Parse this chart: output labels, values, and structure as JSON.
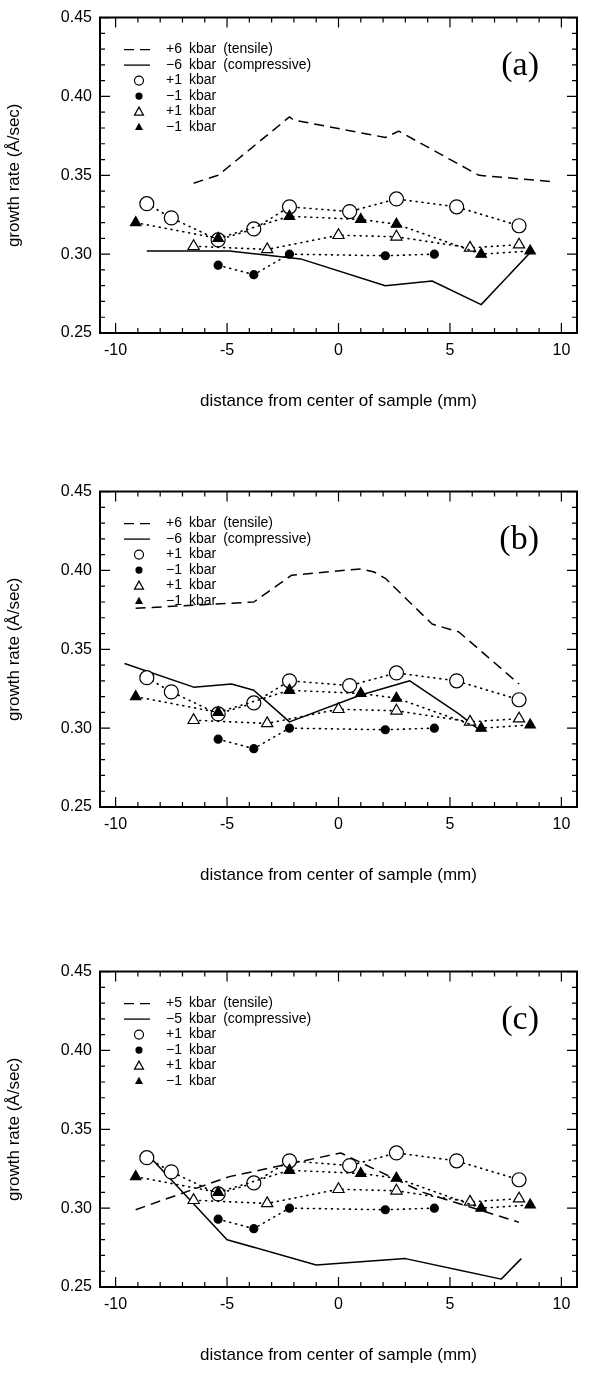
{
  "chart_data": [
    {
      "type": "line",
      "title": "(a)",
      "xlabel": "distance from center of sample (mm)",
      "ylabel": "growth rate (Å/sec)",
      "legend": "top left",
      "xlim": [
        -10.7,
        10.7
      ],
      "ylim": [
        0.25,
        0.45
      ],
      "xticks": [
        -10,
        {
          "value": -9,
          "label": null
        },
        {
          "value": -8,
          "label": null
        },
        {
          "value": -7,
          "label": null
        },
        {
          "value": -6,
          "label": null
        },
        -5,
        {
          "value": -4,
          "label": null
        },
        {
          "value": -3,
          "label": null
        },
        {
          "value": -2,
          "label": null
        },
        {
          "value": -1,
          "label": null
        },
        0,
        {
          "value": 1,
          "label": null
        },
        {
          "value": 2,
          "label": null
        },
        {
          "value": 3,
          "label": null
        },
        {
          "value": 4,
          "label": null
        },
        5,
        {
          "value": 6,
          "label": null
        },
        {
          "value": 7,
          "label": null
        },
        {
          "value": 8,
          "label": null
        },
        {
          "value": 9,
          "label": null
        },
        10
      ],
      "yticks": [
        0.25,
        {
          "value": 0.26,
          "label": null
        },
        {
          "value": 0.27,
          "label": null
        },
        {
          "value": 0.28,
          "label": null
        },
        {
          "value": 0.29,
          "label": null
        },
        {
          "value": 0.3,
          "label": "0.30"
        },
        {
          "value": 0.31,
          "label": null
        },
        {
          "value": 0.32,
          "label": null
        },
        {
          "value": 0.33,
          "label": null
        },
        {
          "value": 0.34,
          "label": null
        },
        0.35,
        {
          "value": 0.36,
          "label": null
        },
        {
          "value": 0.37,
          "label": null
        },
        {
          "value": 0.38,
          "label": null
        },
        {
          "value": 0.39,
          "label": null
        },
        {
          "value": 0.4,
          "label": "0.40"
        },
        {
          "value": 0.41,
          "label": null
        },
        {
          "value": 0.42,
          "label": null
        },
        {
          "value": 0.43,
          "label": null
        },
        {
          "value": 0.44,
          "label": null
        },
        0.45
      ],
      "series": [
        {
          "name": "+6  kbar  (tensile)",
          "color": "#000000",
          "line_style": "dashed",
          "marker": "none",
          "x": [
            -6.5,
            -5.4,
            -2.2,
            -2.0,
            2.1,
            2.7,
            6.3,
            9.6
          ],
          "values": [
            0.345,
            0.35,
            0.387,
            0.385,
            0.374,
            0.378,
            0.35,
            0.346
          ]
        },
        {
          "name": "−6  kbar  (compressive)",
          "color": "#000000",
          "line_style": "solid",
          "marker": "none",
          "x": [
            -8.6,
            -4.9,
            -1.7,
            2.1,
            4.2,
            6.4,
            8.6
          ],
          "values": [
            0.302,
            0.302,
            0.297,
            0.28,
            0.283,
            0.268,
            0.301
          ]
        },
        {
          "name": "+1  kbar",
          "color": "#ffffff",
          "line_style": "dotted",
          "marker": "circle",
          "x": [
            -8.6,
            -7.5,
            -5.4,
            -3.8,
            -2.2,
            0.5,
            2.6,
            5.3,
            8.1
          ],
          "values": [
            0.332,
            0.323,
            0.309,
            0.316,
            0.33,
            0.327,
            0.335,
            0.33,
            0.318
          ]
        },
        {
          "name": "−1  kbar",
          "color": "#000000",
          "line_style": "dotted",
          "marker": "circle",
          "x": [
            -5.4,
            -3.8,
            -2.2,
            2.1,
            4.3
          ],
          "values": [
            0.293,
            0.287,
            0.3,
            0.299,
            0.3
          ]
        },
        {
          "name": "+1  kbar",
          "color": "#ffffff",
          "line_style": "dotted",
          "marker": "triangle",
          "x": [
            -6.5,
            -3.2,
            0.0,
            2.6,
            5.9,
            8.1
          ],
          "values": [
            0.305,
            0.303,
            0.312,
            0.311,
            0.304,
            0.306
          ]
        },
        {
          "name": "−1  kbar",
          "color": "#000000",
          "line_style": "dotted",
          "marker": "triangle",
          "x": [
            -9.1,
            -5.4,
            -2.2,
            1.0,
            2.6,
            6.4,
            8.6
          ],
          "values": [
            0.32,
            0.31,
            0.324,
            0.322,
            0.319,
            0.3,
            0.302
          ]
        }
      ]
    },
    {
      "type": "line",
      "title": "(b)",
      "xlabel": "distance from center of sample (mm)",
      "ylabel": "growth rate (Å/sec)",
      "legend": "top left",
      "xlim": [
        -10.7,
        10.7
      ],
      "ylim": [
        0.25,
        0.45
      ],
      "xticks": [
        -10,
        {
          "value": -9,
          "label": null
        },
        {
          "value": -8,
          "label": null
        },
        {
          "value": -7,
          "label": null
        },
        {
          "value": -6,
          "label": null
        },
        -5,
        {
          "value": -4,
          "label": null
        },
        {
          "value": -3,
          "label": null
        },
        {
          "value": -2,
          "label": null
        },
        {
          "value": -1,
          "label": null
        },
        0,
        {
          "value": 1,
          "label": null
        },
        {
          "value": 2,
          "label": null
        },
        {
          "value": 3,
          "label": null
        },
        {
          "value": 4,
          "label": null
        },
        5,
        {
          "value": 6,
          "label": null
        },
        {
          "value": 7,
          "label": null
        },
        {
          "value": 8,
          "label": null
        },
        {
          "value": 9,
          "label": null
        },
        10
      ],
      "yticks": [
        0.25,
        {
          "value": 0.26,
          "label": null
        },
        {
          "value": 0.27,
          "label": null
        },
        {
          "value": 0.28,
          "label": null
        },
        {
          "value": 0.29,
          "label": null
        },
        {
          "value": 0.3,
          "label": "0.30"
        },
        {
          "value": 0.31,
          "label": null
        },
        {
          "value": 0.32,
          "label": null
        },
        {
          "value": 0.33,
          "label": null
        },
        {
          "value": 0.34,
          "label": null
        },
        0.35,
        {
          "value": 0.36,
          "label": null
        },
        {
          "value": 0.37,
          "label": null
        },
        {
          "value": 0.38,
          "label": null
        },
        {
          "value": 0.39,
          "label": null
        },
        {
          "value": 0.4,
          "label": "0.40"
        },
        {
          "value": 0.41,
          "label": null
        },
        {
          "value": 0.42,
          "label": null
        },
        {
          "value": 0.43,
          "label": null
        },
        {
          "value": 0.44,
          "label": null
        },
        0.45
      ],
      "series": [
        {
          "name": "+6  kbar  (tensile)",
          "color": "#000000",
          "line_style": "dashed",
          "marker": "none",
          "x": [
            -9.1,
            -3.8,
            -2.1,
            1.0,
            1.6,
            2.1,
            4.2,
            5.4,
            8.1
          ],
          "values": [
            0.376,
            0.38,
            0.397,
            0.401,
            0.399,
            0.395,
            0.366,
            0.361,
            0.328
          ]
        },
        {
          "name": "−6  kbar  (compressive)",
          "color": "#000000",
          "line_style": "solid",
          "marker": "none",
          "x": [
            -9.6,
            -6.5,
            -4.8,
            -3.8,
            -2.2,
            1.0,
            3.2,
            5.4,
            6.4
          ],
          "values": [
            0.341,
            0.326,
            0.328,
            0.324,
            0.304,
            0.321,
            0.33,
            0.309,
            0.298
          ]
        },
        {
          "name": "+1  kbar",
          "color": "#ffffff",
          "line_style": "dotted",
          "marker": "circle",
          "x": [
            -8.6,
            -7.5,
            -5.4,
            -3.8,
            -2.2,
            0.5,
            2.6,
            5.3,
            8.1
          ],
          "values": [
            0.332,
            0.323,
            0.309,
            0.316,
            0.33,
            0.327,
            0.335,
            0.33,
            0.318
          ]
        },
        {
          "name": "−1  kbar",
          "color": "#000000",
          "line_style": "dotted",
          "marker": "circle",
          "x": [
            -5.4,
            -3.8,
            -2.2,
            2.1,
            4.3
          ],
          "values": [
            0.293,
            0.287,
            0.3,
            0.299,
            0.3
          ]
        },
        {
          "name": "+1  kbar",
          "color": "#ffffff",
          "line_style": "dotted",
          "marker": "triangle",
          "x": [
            -6.5,
            -3.2,
            0.0,
            2.6,
            5.9,
            8.1
          ],
          "values": [
            0.305,
            0.303,
            0.312,
            0.311,
            0.304,
            0.306
          ]
        },
        {
          "name": "−1  kbar",
          "color": "#000000",
          "line_style": "dotted",
          "marker": "triangle",
          "x": [
            -9.1,
            -5.4,
            -2.2,
            1.0,
            2.6,
            6.4,
            8.6
          ],
          "values": [
            0.32,
            0.31,
            0.324,
            0.322,
            0.319,
            0.3,
            0.302
          ]
        }
      ]
    },
    {
      "type": "line",
      "title": "(c)",
      "xlabel": "distance from center of sample (mm)",
      "ylabel": "growth rate (Å/sec)",
      "legend": "top left",
      "xlim": [
        -10.7,
        10.7
      ],
      "ylim": [
        0.25,
        0.45
      ],
      "xticks": [
        -10,
        {
          "value": -9,
          "label": null
        },
        {
          "value": -8,
          "label": null
        },
        {
          "value": -7,
          "label": null
        },
        {
          "value": -6,
          "label": null
        },
        -5,
        {
          "value": -4,
          "label": null
        },
        {
          "value": -3,
          "label": null
        },
        {
          "value": -2,
          "label": null
        },
        {
          "value": -1,
          "label": null
        },
        0,
        {
          "value": 1,
          "label": null
        },
        {
          "value": 2,
          "label": null
        },
        {
          "value": 3,
          "label": null
        },
        {
          "value": 4,
          "label": null
        },
        5,
        {
          "value": 6,
          "label": null
        },
        {
          "value": 7,
          "label": null
        },
        {
          "value": 8,
          "label": null
        },
        {
          "value": 9,
          "label": null
        },
        10
      ],
      "yticks": [
        0.25,
        {
          "value": 0.26,
          "label": null
        },
        {
          "value": 0.27,
          "label": null
        },
        {
          "value": 0.28,
          "label": null
        },
        {
          "value": 0.29,
          "label": null
        },
        {
          "value": 0.3,
          "label": "0.30"
        },
        {
          "value": 0.31,
          "label": null
        },
        {
          "value": 0.32,
          "label": null
        },
        {
          "value": 0.33,
          "label": null
        },
        {
          "value": 0.34,
          "label": null
        },
        0.35,
        {
          "value": 0.36,
          "label": null
        },
        {
          "value": 0.37,
          "label": null
        },
        {
          "value": 0.38,
          "label": null
        },
        {
          "value": 0.39,
          "label": null
        },
        {
          "value": 0.4,
          "label": "0.40"
        },
        {
          "value": 0.41,
          "label": null
        },
        {
          "value": 0.42,
          "label": null
        },
        {
          "value": 0.43,
          "label": null
        },
        {
          "value": 0.44,
          "label": null
        },
        0.45
      ],
      "series": [
        {
          "name": "+5  kbar  (tensile)",
          "color": "#000000",
          "line_style": "dashed",
          "marker": "none",
          "x": [
            -9.1,
            -4.9,
            0.1,
            3.8,
            8.1
          ],
          "values": [
            0.299,
            0.32,
            0.335,
            0.31,
            0.291
          ]
        },
        {
          "name": "−5  kbar  (compressive)",
          "color": "#000000",
          "line_style": "solid",
          "marker": "none",
          "x": [
            -8.5,
            -5.0,
            -1.0,
            3.0,
            7.3,
            8.2
          ],
          "values": [
            0.333,
            0.28,
            0.264,
            0.268,
            0.255,
            0.268
          ]
        },
        {
          "name": "+1  kbar",
          "color": "#ffffff",
          "line_style": "dotted",
          "marker": "circle",
          "x": [
            -8.6,
            -7.5,
            -5.4,
            -3.8,
            -2.2,
            0.5,
            2.6,
            5.3,
            8.1
          ],
          "values": [
            0.332,
            0.323,
            0.309,
            0.316,
            0.33,
            0.327,
            0.335,
            0.33,
            0.318
          ]
        },
        {
          "name": "−1  kbar",
          "color": "#000000",
          "line_style": "dotted",
          "marker": "circle",
          "x": [
            -5.4,
            -3.8,
            -2.2,
            2.1,
            4.3
          ],
          "values": [
            0.293,
            0.287,
            0.3,
            0.299,
            0.3
          ]
        },
        {
          "name": "+1  kbar",
          "color": "#ffffff",
          "line_style": "dotted",
          "marker": "triangle",
          "x": [
            -6.5,
            -3.2,
            0.0,
            2.6,
            5.9,
            8.1
          ],
          "values": [
            0.305,
            0.303,
            0.312,
            0.311,
            0.304,
            0.306
          ]
        },
        {
          "name": "−1  kbar",
          "color": "#000000",
          "line_style": "dotted",
          "marker": "triangle",
          "x": [
            -9.1,
            -5.4,
            -2.2,
            1.0,
            2.6,
            6.4,
            8.6
          ],
          "values": [
            0.32,
            0.31,
            0.324,
            0.322,
            0.319,
            0.3,
            0.302
          ]
        }
      ]
    }
  ]
}
